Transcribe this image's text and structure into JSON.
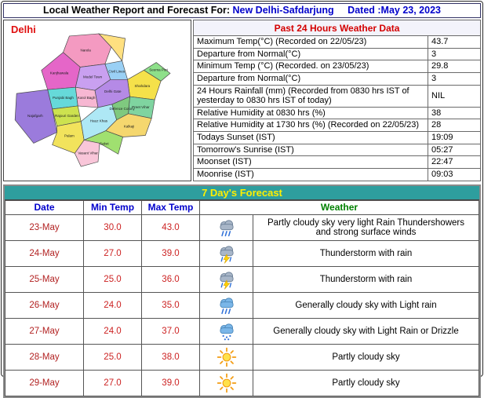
{
  "header": {
    "title_prefix": "Local Weather Report and Forecast For:",
    "station": "New Delhi-Safdarjung",
    "dated_label": "Dated :May 23, 2023"
  },
  "colors": {
    "forecast_bar_bg": "#2e9e9e",
    "forecast_bar_text": "#ffef00",
    "title_accent_blue": "#0000cc",
    "past24_title_red": "#d40000",
    "forecast_value_red": "#cc2222",
    "weather_header_green": "#008000"
  },
  "map": {
    "region_label": "Delhi",
    "districts": [
      "Narela",
      "Kanjhawala",
      "Model Town",
      "Civil Lines",
      "Seema Puri",
      "Shahdara",
      "Preet Vihar",
      "Punjabi Bagh",
      "Karol Bagh",
      "Delhi Gate",
      "Najafgarh",
      "Rajouri Garden",
      "Palam",
      "Hauz Khas",
      "Defence Colony",
      "Kalkaji",
      "Saket",
      "Vasant Vihar"
    ]
  },
  "past24": {
    "title": "Past 24 Hours Weather Data",
    "rows": [
      {
        "label": "Maximum Temp(°C) (Recorded on 22/05/23)",
        "value": "43.7"
      },
      {
        "label": "Departure from Normal(°C)",
        "value": "3"
      },
      {
        "label": "Minimum Temp (°C) (Recorded. on 23/05/23)",
        "value": "29.8"
      },
      {
        "label": "Departure from Normal(°C)",
        "value": "3"
      },
      {
        "label": "24 Hours Rainfall (mm) (Recorded from 0830 hrs IST of yesterday to 0830 hrs IST of today)",
        "value": "NIL"
      },
      {
        "label": "Relative Humidity at 0830 hrs (%)",
        "value": "38"
      },
      {
        "label": "Relative Humidity at 1730 hrs (%) (Recorded on 22/05/23)",
        "value": "28"
      },
      {
        "label": "Todays Sunset (IST)",
        "value": "19:09"
      },
      {
        "label": "Tomorrow's Sunrise (IST)",
        "value": "05:27"
      },
      {
        "label": "Moonset (IST)",
        "value": "22:47"
      },
      {
        "label": "Moonrise (IST)",
        "value": "09:03"
      }
    ]
  },
  "forecast": {
    "title": "7 Day's Forecast",
    "columns": {
      "date": "Date",
      "min": "Min Temp",
      "max": "Max Temp",
      "weather": "Weather"
    },
    "rows": [
      {
        "date": "23-May",
        "min": "30.0",
        "max": "43.0",
        "icon": "rain",
        "weather": "Partly cloudy sky very light Rain Thundershowers and strong surface winds"
      },
      {
        "date": "24-May",
        "min": "27.0",
        "max": "39.0",
        "icon": "thunderstorm",
        "weather": "Thunderstorm with rain"
      },
      {
        "date": "25-May",
        "min": "25.0",
        "max": "36.0",
        "icon": "thunderstorm",
        "weather": "Thunderstorm with rain"
      },
      {
        "date": "26-May",
        "min": "24.0",
        "max": "35.0",
        "icon": "cloud-rain",
        "weather": "Generally cloudy sky with Light rain"
      },
      {
        "date": "27-May",
        "min": "24.0",
        "max": "37.0",
        "icon": "drizzle",
        "weather": "Generally cloudy sky with Light Rain or Drizzle"
      },
      {
        "date": "28-May",
        "min": "25.0",
        "max": "38.0",
        "icon": "sun",
        "weather": "Partly cloudy sky"
      },
      {
        "date": "29-May",
        "min": "27.0",
        "max": "39.0",
        "icon": "sun",
        "weather": "Partly cloudy sky"
      }
    ]
  }
}
